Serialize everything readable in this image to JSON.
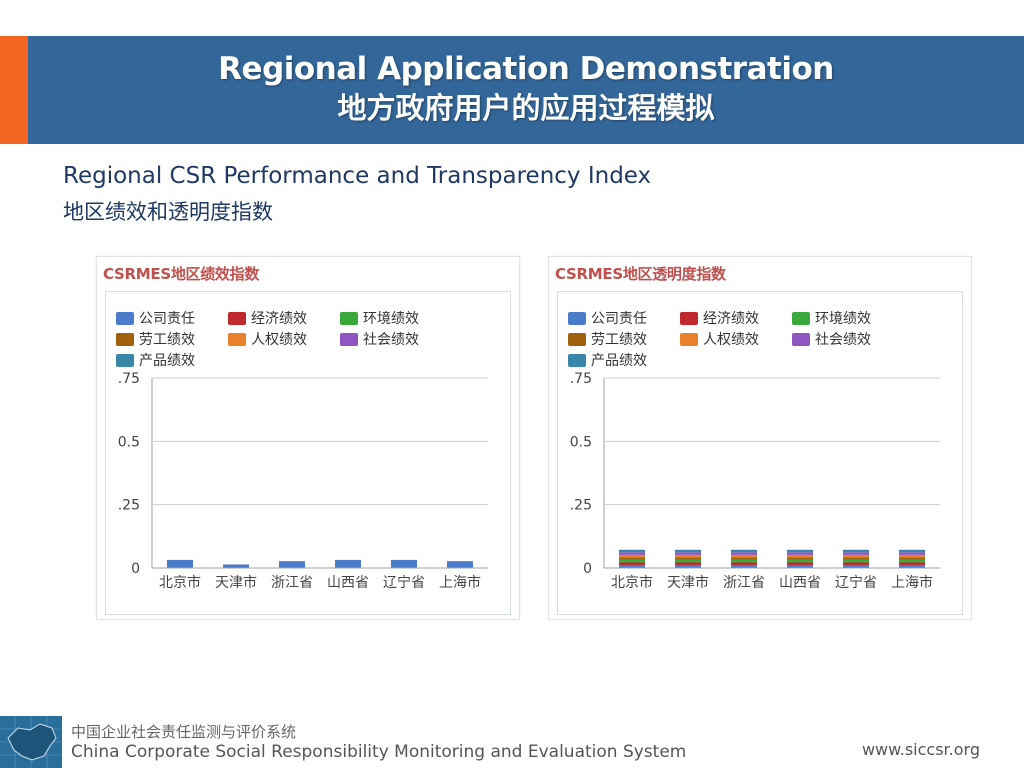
{
  "header": {
    "title": "Regional Application Demonstration",
    "subtitle": "地方政府用户的应用过程模拟"
  },
  "intro": {
    "title_en": "Regional CSR Performance and Transparency Index",
    "title_zh": "地区绩效和透明度指数"
  },
  "legend_colors": [
    "#4a7cc9",
    "#c0282d",
    "#3aa83a",
    "#a0600e",
    "#e8812a",
    "#8f55c0",
    "#3a86a8"
  ],
  "chart_data": [
    {
      "type": "bar",
      "title": "CSRMES地区绩效指数",
      "xlabel": "",
      "ylabel": "",
      "ylim": [
        0,
        0.75
      ],
      "yticks": [
        {
          "value": 0.75,
          "label": ".75"
        },
        {
          "value": 0.5,
          "label": "0.5"
        },
        {
          "value": 0.25,
          "label": ".25"
        },
        {
          "value": 0,
          "label": "0"
        }
      ],
      "grid": true,
      "legend_position": "top-left",
      "categories": [
        "北京市",
        "天津市",
        "浙江省",
        "山西省",
        "辽宁省",
        "上海市"
      ],
      "series": [
        {
          "name": "公司责任",
          "color": "#4a7cc9",
          "values": [
            0.03,
            0.012,
            0.025,
            0.03,
            0.03,
            0.025
          ]
        },
        {
          "name": "经济绩效",
          "color": "#c0282d",
          "values": [
            0,
            0,
            0,
            0,
            0,
            0
          ]
        },
        {
          "name": "环境绩效",
          "color": "#3aa83a",
          "values": [
            0,
            0,
            0,
            0,
            0,
            0
          ]
        },
        {
          "name": "劳工绩效",
          "color": "#a0600e",
          "values": [
            0,
            0,
            0,
            0,
            0,
            0
          ]
        },
        {
          "name": "人权绩效",
          "color": "#e8812a",
          "values": [
            0,
            0,
            0,
            0,
            0,
            0
          ]
        },
        {
          "name": "社会绩效",
          "color": "#8f55c0",
          "values": [
            0,
            0,
            0,
            0,
            0,
            0
          ]
        },
        {
          "name": "产品绩效",
          "color": "#3a86a8",
          "values": [
            0,
            0,
            0,
            0,
            0,
            0
          ]
        }
      ]
    },
    {
      "type": "bar",
      "title": "CSRMES地区透明度指数",
      "xlabel": "",
      "ylabel": "",
      "ylim": [
        0,
        0.75
      ],
      "yticks": [
        {
          "value": 0.75,
          "label": ".75"
        },
        {
          "value": 0.5,
          "label": "0.5"
        },
        {
          "value": 0.25,
          "label": ".25"
        },
        {
          "value": 0,
          "label": "0"
        }
      ],
      "grid": true,
      "legend_position": "top-left",
      "categories": [
        "北京市",
        "天津市",
        "浙江省",
        "山西省",
        "辽宁省",
        "上海市"
      ],
      "series": [
        {
          "name": "公司责任",
          "color": "#4a7cc9",
          "values": [
            0.01,
            0.01,
            0.01,
            0.01,
            0.01,
            0.01
          ]
        },
        {
          "name": "经济绩效",
          "color": "#c0282d",
          "values": [
            0.01,
            0.01,
            0.01,
            0.01,
            0.01,
            0.01
          ]
        },
        {
          "name": "环境绩效",
          "color": "#3aa83a",
          "values": [
            0.01,
            0.01,
            0.01,
            0.01,
            0.01,
            0.01
          ]
        },
        {
          "name": "劳工绩效",
          "color": "#a0600e",
          "values": [
            0.01,
            0.01,
            0.01,
            0.01,
            0.01,
            0.01
          ]
        },
        {
          "name": "人权绩效",
          "color": "#e8812a",
          "values": [
            0.01,
            0.01,
            0.01,
            0.01,
            0.01,
            0.01
          ]
        },
        {
          "name": "社会绩效",
          "color": "#8f55c0",
          "values": [
            0.01,
            0.01,
            0.01,
            0.01,
            0.01,
            0.01
          ]
        },
        {
          "name": "产品绩效",
          "color": "#3a86a8",
          "values": [
            0.01,
            0.01,
            0.01,
            0.01,
            0.01,
            0.01
          ]
        }
      ]
    }
  ],
  "footer": {
    "org_zh": "中国企业社会责任监测与评价系统",
    "org_en": "China Corporate Social Responsibility Monitoring and Evaluation System",
    "url": "www.siccsr.org"
  }
}
